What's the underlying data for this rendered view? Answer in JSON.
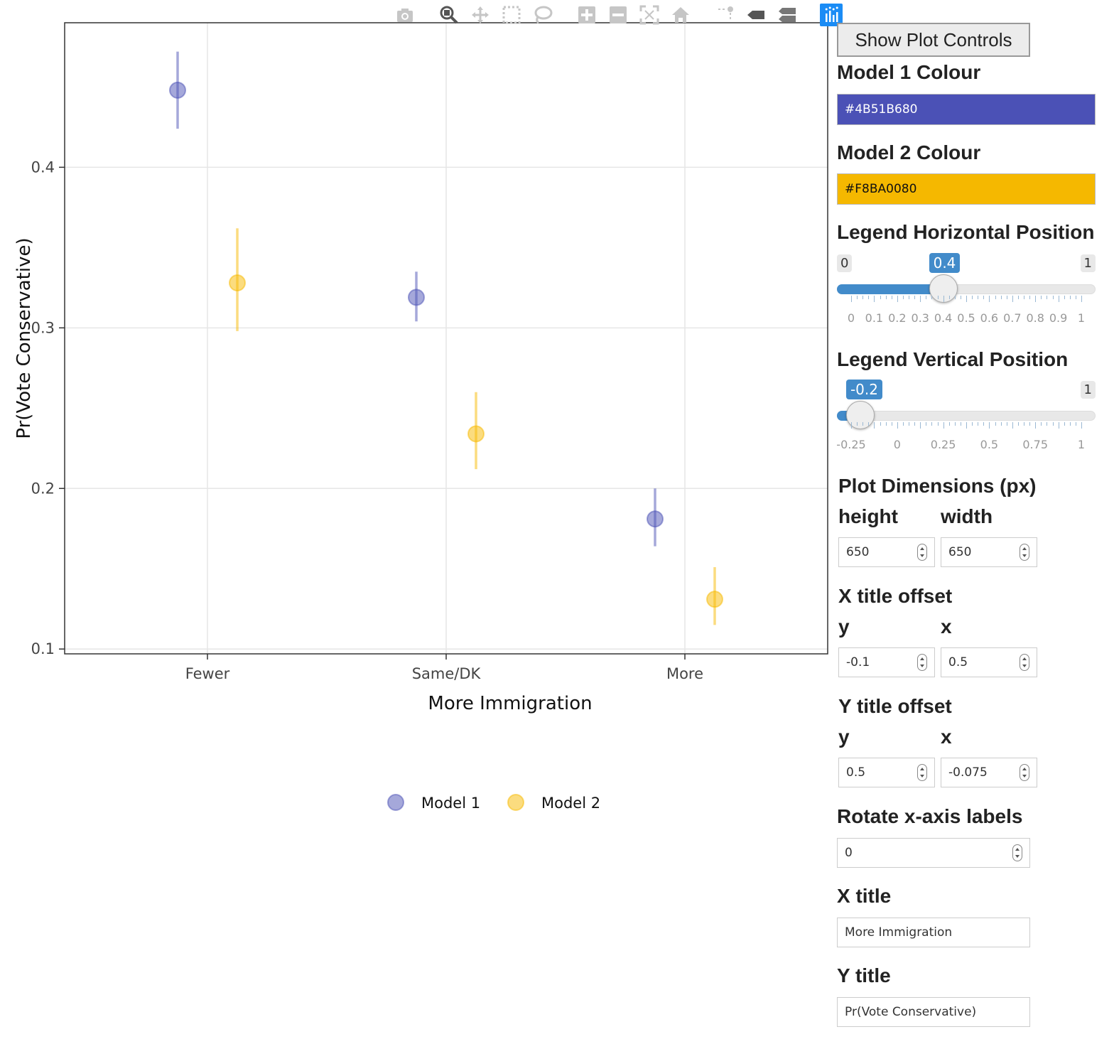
{
  "modebar": {
    "icons": [
      "camera-icon",
      "zoom-icon",
      "pan-icon",
      "box-select-icon",
      "lasso-icon",
      "zoom-in-icon",
      "zoom-out-icon",
      "autoscale-icon",
      "reset-axes-icon",
      "spike-lines-icon",
      "hover-closest-icon",
      "hover-compare-icon",
      "plotly-logo-icon"
    ]
  },
  "chart_data": {
    "type": "scatter",
    "xlabel": "More Immigration",
    "ylabel": "Pr(Vote Conservative)",
    "categories": [
      "Fewer",
      "Same/DK",
      "More"
    ],
    "y_ticks": [
      "0.1",
      "0.2",
      "0.3",
      "0.4"
    ],
    "ylim": [
      0.097,
      0.49
    ],
    "grid": true,
    "legend_position": "bottom-center",
    "series": [
      {
        "name": "Model 1",
        "color": "#4B51B680",
        "values": [
          0.448,
          0.319,
          0.181
        ],
        "lower": [
          0.424,
          0.304,
          0.164
        ],
        "upper": [
          0.472,
          0.335,
          0.2
        ]
      },
      {
        "name": "Model 2",
        "color": "#F8BA0080",
        "values": [
          0.328,
          0.234,
          0.131
        ],
        "lower": [
          0.298,
          0.212,
          0.115
        ],
        "upper": [
          0.362,
          0.26,
          0.151
        ]
      }
    ]
  },
  "panel": {
    "show_controls_label": "Show Plot Controls",
    "model1_colour_label": "Model 1 Colour",
    "model1_colour_value": "#4B51B680",
    "model1_colour_bg": "#4b51b6",
    "model2_colour_label": "Model 2 Colour",
    "model2_colour_value": "#F8BA0080",
    "model2_colour_bg": "#f5b800",
    "legend_h": {
      "label": "Legend Horizontal Position",
      "min": "0",
      "max": "1",
      "value": "0.4",
      "fraction": 0.4,
      "grid_labels": [
        "0",
        "0.1",
        "0.2",
        "0.3",
        "0.4",
        "0.5",
        "0.6",
        "0.7",
        "0.8",
        "0.9",
        "1"
      ]
    },
    "legend_v": {
      "label": "Legend Vertical Position",
      "max": "1",
      "value": "-0.2",
      "fraction": 0.04,
      "grid_labels": [
        "-0.25",
        "0",
        "0.25",
        "0.5",
        "0.75",
        "1"
      ]
    },
    "dims": {
      "label": "Plot Dimensions (px)",
      "height_label": "height",
      "width_label": "width",
      "height": "650",
      "width": "650"
    },
    "x_offset": {
      "label": "X title offset",
      "y_label": "y",
      "x_label": "x",
      "y": "-0.1",
      "x": "0.5"
    },
    "y_offset": {
      "label": "Y title offset",
      "y_label": "y",
      "x_label": "x",
      "y": "0.5",
      "x": "-0.075"
    },
    "rotate": {
      "label": "Rotate x-axis labels",
      "value": "0"
    },
    "x_title": {
      "label": "X title",
      "value": "More Immigration"
    },
    "y_title": {
      "label": "Y title",
      "value": "Pr(Vote Conservative)"
    }
  }
}
